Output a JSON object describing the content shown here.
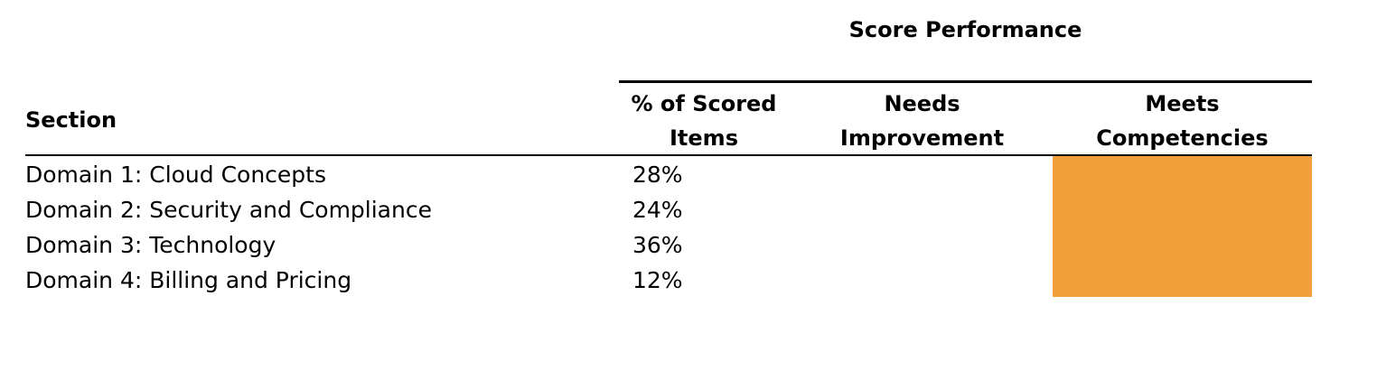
{
  "table": {
    "group_title": "Score Performance",
    "columns": {
      "section": "Section",
      "pct_line1": "% of Scored",
      "pct_line2": "Items",
      "needs_line1": "Needs",
      "needs_line2": "Improvement",
      "meets_line1": "Meets",
      "meets_line2": "Competencies"
    },
    "rows": [
      {
        "section": "Domain 1: Cloud Concepts",
        "pct": "28%"
      },
      {
        "section": "Domain 2: Security and Compliance",
        "pct": "24%"
      },
      {
        "section": "Domain 3: Technology",
        "pct": "36%"
      },
      {
        "section": "Domain 4: Billing and Pricing",
        "pct": "12%"
      }
    ],
    "meets_fill_color": "#f19f3a"
  }
}
